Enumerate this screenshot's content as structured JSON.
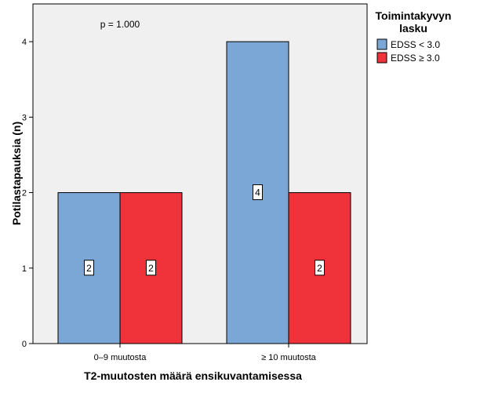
{
  "chart_data": {
    "type": "bar",
    "categories": [
      "0–9 muutosta",
      "≥ 10 muutosta"
    ],
    "series": [
      {
        "name": "EDSS < 3.0",
        "values": [
          2,
          4
        ],
        "color": "#7BA7D6"
      },
      {
        "name": "EDSS ≥ 3.0",
        "values": [
          2,
          2
        ],
        "color": "#F0323A"
      }
    ],
    "xlabel": "T2-muutosten määrä ensikuvantamisessa",
    "ylabel": "Potilastapauksia (n)",
    "ylim": [
      0,
      4.5
    ],
    "yticks": [
      "0",
      "1",
      "2",
      "3",
      "4"
    ],
    "annotation": "p = 1.000",
    "legend": {
      "title": "Toimintakyvyn lasku",
      "title_lines": [
        "Toimintakyvyn",
        "lasku"
      ],
      "placement": "right-top"
    },
    "grid": false,
    "plot_background": "#F0F0F0"
  }
}
